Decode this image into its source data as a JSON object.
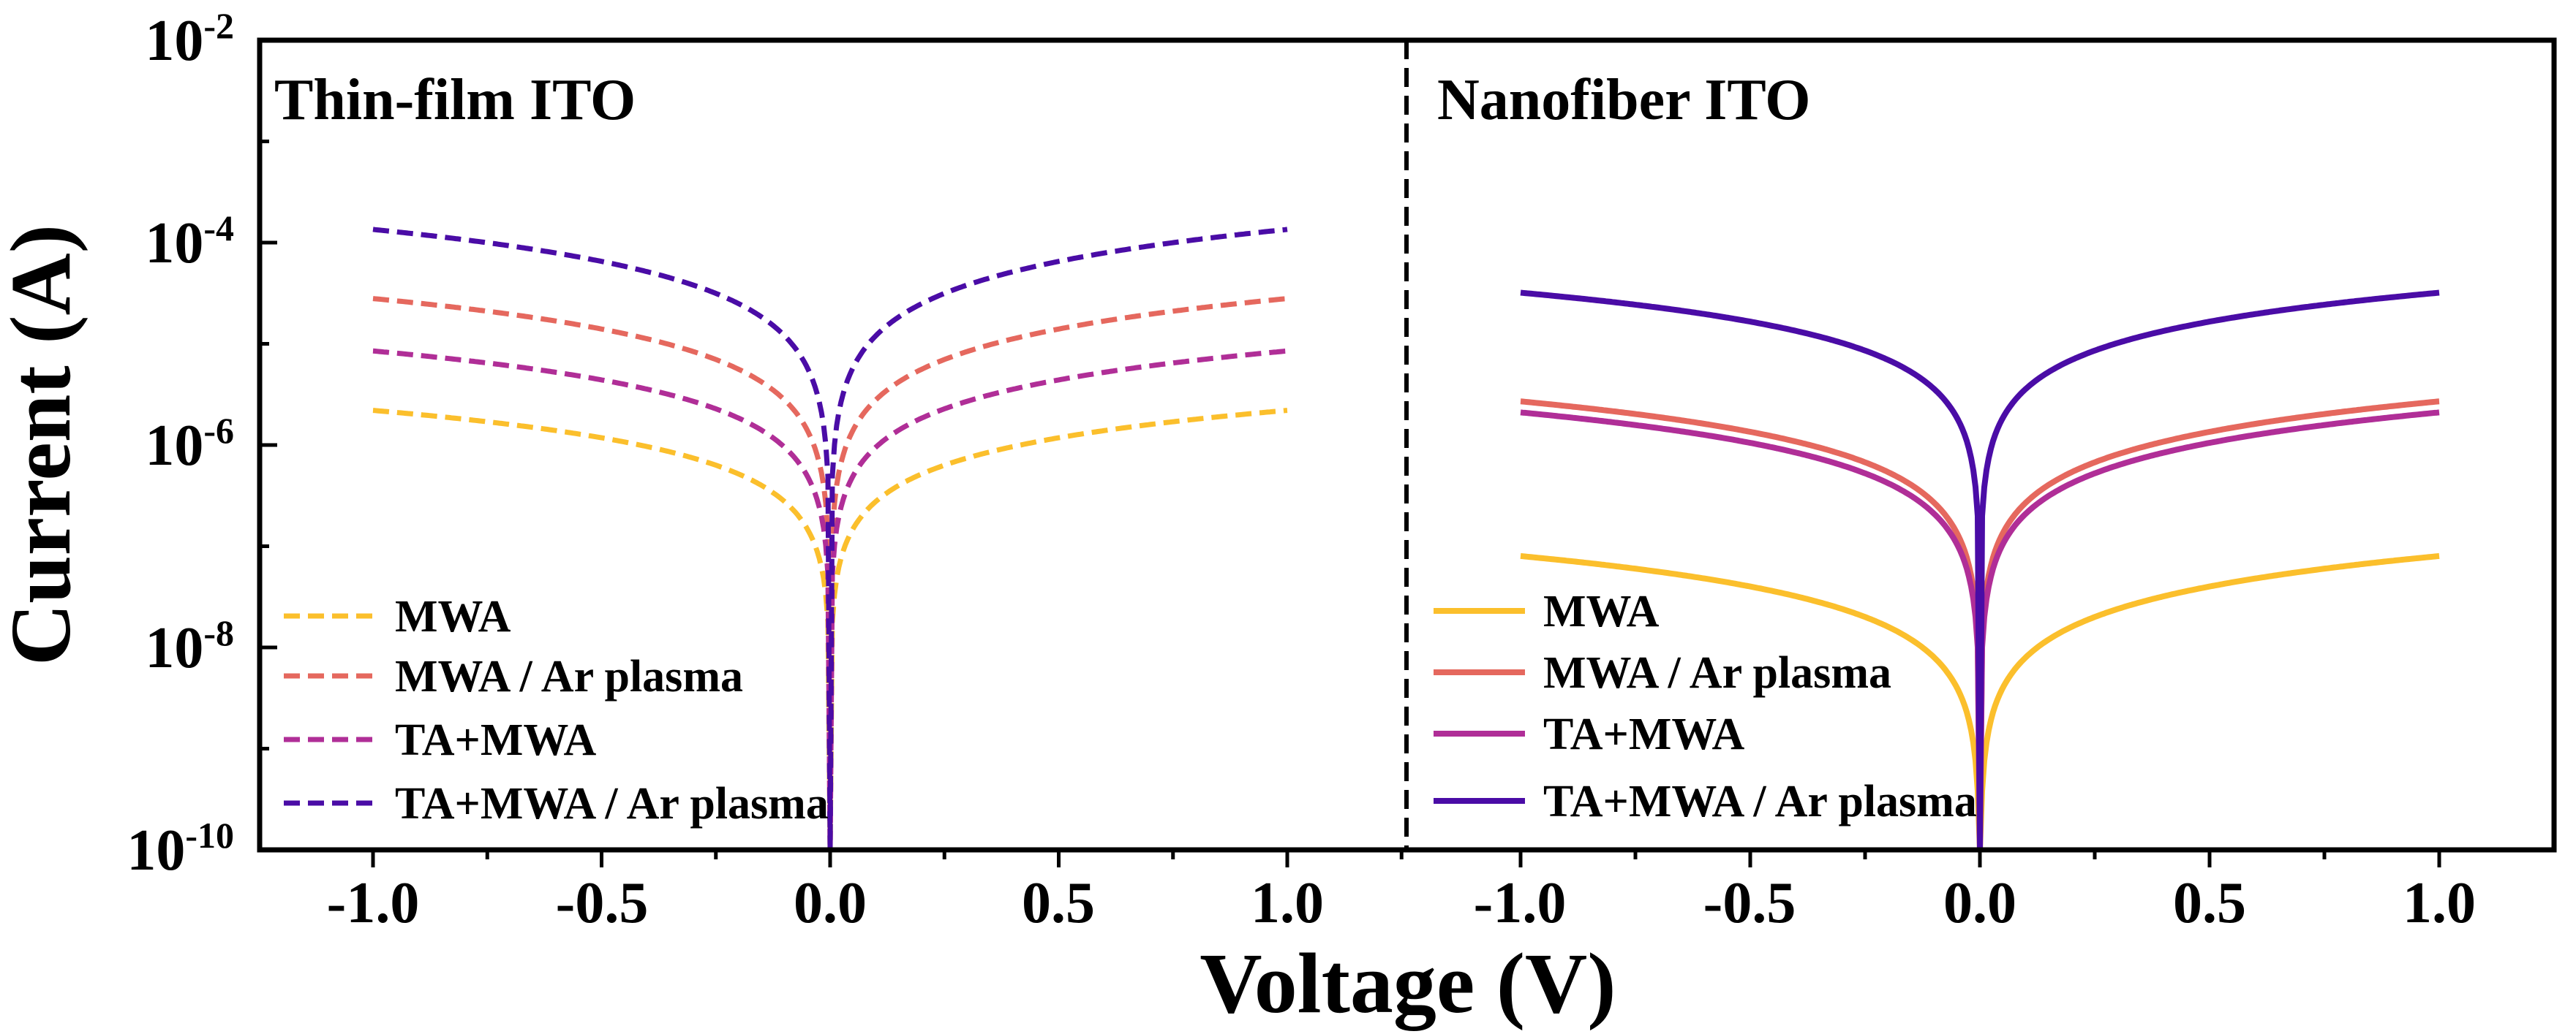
{
  "colors": {
    "MWA": "#FBBF2C",
    "MWA / Ar plasma": "#E5685E",
    "TA+MWA": "#B02E97",
    "TA+MWA / Ar plasma": "#4A0CA6"
  },
  "chart_data": {
    "type": "line",
    "xlabel": "Voltage (V)",
    "ylabel": "Current (A)",
    "yscale": "log",
    "xlim": [
      -1.25,
      1.25
    ],
    "ylim": [
      1e-10,
      0.01
    ],
    "x_ticks": [
      "-1.0",
      "-0.5",
      "0.0",
      "0.5",
      "1.0"
    ],
    "y_ticks": [
      {
        "base": "10",
        "exp": "-2"
      },
      {
        "base": "10",
        "exp": "-4"
      },
      {
        "base": "10",
        "exp": "-6"
      },
      {
        "base": "10",
        "exp": "-8"
      },
      {
        "base": "10",
        "exp": "-10"
      }
    ],
    "panels": [
      {
        "title": "Thin-film ITO",
        "line_style": "dashed",
        "legend_position": "bottom-left",
        "series": [
          {
            "name": "MWA",
            "i_at_1V": 2.2e-06,
            "exponent": 0.9
          },
          {
            "name": "MWA / Ar plasma",
            "i_at_1V": 2.8e-05,
            "exponent": 1.0
          },
          {
            "name": "TA+MWA",
            "i_at_1V": 8.5e-06,
            "exponent": 0.95
          },
          {
            "name": "TA+MWA / Ar plasma",
            "i_at_1V": 0.000135,
            "exponent": 1.05
          }
        ]
      },
      {
        "title": "Nanofiber ITO",
        "line_style": "solid",
        "legend_position": "bottom-left",
        "series": [
          {
            "name": "MWA",
            "i_at_1V": 8e-08,
            "exponent": 1.0
          },
          {
            "name": "MWA / Ar plasma",
            "i_at_1V": 2.7e-06,
            "exponent": 1.0
          },
          {
            "name": "TA+MWA",
            "i_at_1V": 2.1e-06,
            "exponent": 1.0
          },
          {
            "name": "TA+MWA / Ar plasma",
            "i_at_1V": 3.2e-05,
            "exponent": 0.95
          }
        ]
      }
    ]
  }
}
